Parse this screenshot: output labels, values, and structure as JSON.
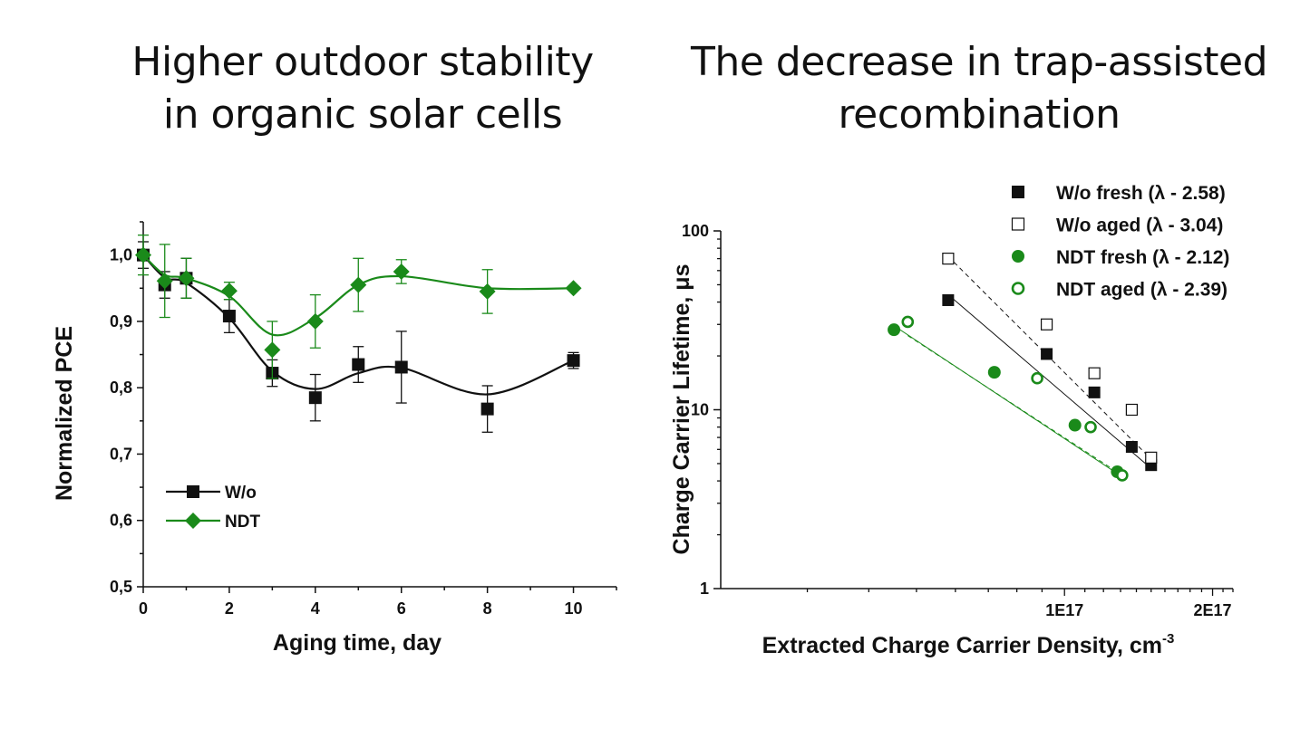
{
  "slide": {
    "title_left_line1": "Higher outdoor stability",
    "title_left_line2": "in organic solar cells",
    "title_right_line1": "The decrease in trap-assisted",
    "title_right_line2": "recombination"
  },
  "colors": {
    "black": "#111111",
    "green": "#1a8a1a"
  },
  "chart_data": [
    {
      "type": "line",
      "xlabel": "Aging time, day",
      "ylabel": "Normalized PCE",
      "xlim": [
        0,
        11
      ],
      "ylim": [
        0.5,
        1.05
      ],
      "x_ticks": [
        0,
        2,
        4,
        6,
        8,
        10
      ],
      "x_tick_labels": [
        "0",
        "2",
        "4",
        "6",
        "8",
        "10"
      ],
      "y_ticks": [
        0.5,
        0.6,
        0.7,
        0.8,
        0.9,
        1.0
      ],
      "y_tick_labels": [
        "0,5",
        "0,6",
        "0,7",
        "0,8",
        "0,9",
        "1,0"
      ],
      "legend_placement": "bottom-left",
      "series": [
        {
          "name": "W/o",
          "color": "#111111",
          "marker": "square",
          "x": [
            0,
            0.5,
            1,
            2,
            3,
            4,
            5,
            6,
            8,
            10
          ],
          "y": [
            1.0,
            0.955,
            0.965,
            0.908,
            0.822,
            0.785,
            0.835,
            0.831,
            0.768,
            0.841
          ],
          "err": [
            0.02,
            0.02,
            0.03,
            0.025,
            0.02,
            0.035,
            0.027,
            0.054,
            0.035,
            0.012
          ],
          "fit_y": [
            1.0,
            0.966,
            0.958,
            0.905,
            0.825,
            0.798,
            0.822,
            0.83,
            0.79,
            0.841
          ]
        },
        {
          "name": "NDT",
          "color": "#1a8a1a",
          "marker": "diamond",
          "x": [
            0,
            0.5,
            1,
            2,
            3,
            4,
            5,
            6,
            8,
            10
          ],
          "y": [
            1.0,
            0.961,
            0.965,
            0.946,
            0.857,
            0.9,
            0.955,
            0.975,
            0.945,
            0.95
          ],
          "err": [
            0.03,
            0.055,
            0.03,
            0.013,
            0.043,
            0.04,
            0.04,
            0.018,
            0.033,
            0.0
          ],
          "fit_y": [
            1.0,
            0.97,
            0.965,
            0.938,
            0.88,
            0.905,
            0.955,
            0.968,
            0.95,
            0.95
          ]
        }
      ]
    },
    {
      "type": "scatter",
      "xlabel": "Extracted Charge Carrier Density, cm",
      "xlabel_sup": "-3",
      "ylabel": "Charge Carrier Lifetime, μs",
      "x_scale": "log",
      "y_scale": "log",
      "xlim": [
        2e+16,
        2.2e+17
      ],
      "ylim": [
        1,
        100
      ],
      "x_tick_labels": [
        "1E17",
        "2E17"
      ],
      "y_tick_labels": [
        "1",
        "10",
        "100"
      ],
      "legend_placement": "top-right",
      "series": [
        {
          "name": "W/o fresh (λ - 2.58)",
          "color": "#111111",
          "marker": "square",
          "filled": true,
          "line": "solid",
          "x": [
            5.8e+16,
            9.2e+16,
            1.15e+17,
            1.37e+17,
            1.5e+17
          ],
          "y": [
            41,
            20.5,
            12.5,
            6.2,
            4.9
          ],
          "fit_x": [
            5.8e+16,
            1.5e+17
          ],
          "fit_y": [
            44,
            4.7
          ]
        },
        {
          "name": "W/o aged (λ - 3.04)",
          "color": "#111111",
          "marker": "square",
          "filled": false,
          "line": "dashed",
          "x": [
            5.8e+16,
            9.2e+16,
            1.15e+17,
            1.37e+17,
            1.5e+17
          ],
          "y": [
            70,
            30,
            16,
            10,
            5.4
          ],
          "fit_x": [
            5.8e+16,
            1.5e+17
          ],
          "fit_y": [
            72,
            5.3
          ]
        },
        {
          "name": "NDT   fresh (λ - 2.12)",
          "color": "#1a8a1a",
          "marker": "circle",
          "filled": true,
          "line": "solid",
          "x": [
            4.5e+16,
            7.2e+16,
            1.05e+17,
            1.28e+17
          ],
          "y": [
            28,
            16.2,
            8.2,
            4.5
          ],
          "fit_x": [
            4.5e+16,
            1.28e+17
          ],
          "fit_y": [
            29.5,
            4.4
          ]
        },
        {
          "name": "NDT   aged (λ - 2.39)",
          "color": "#1a8a1a",
          "marker": "circle",
          "filled": false,
          "line": "dashed",
          "x": [
            4.8e+16,
            8.8e+16,
            1.13e+17,
            1.31e+17
          ],
          "y": [
            31,
            15,
            8,
            4.3
          ],
          "fit_x": [
            4.8e+16,
            1.31e+17
          ],
          "fit_y": [
            26,
            4.3
          ]
        }
      ]
    }
  ]
}
